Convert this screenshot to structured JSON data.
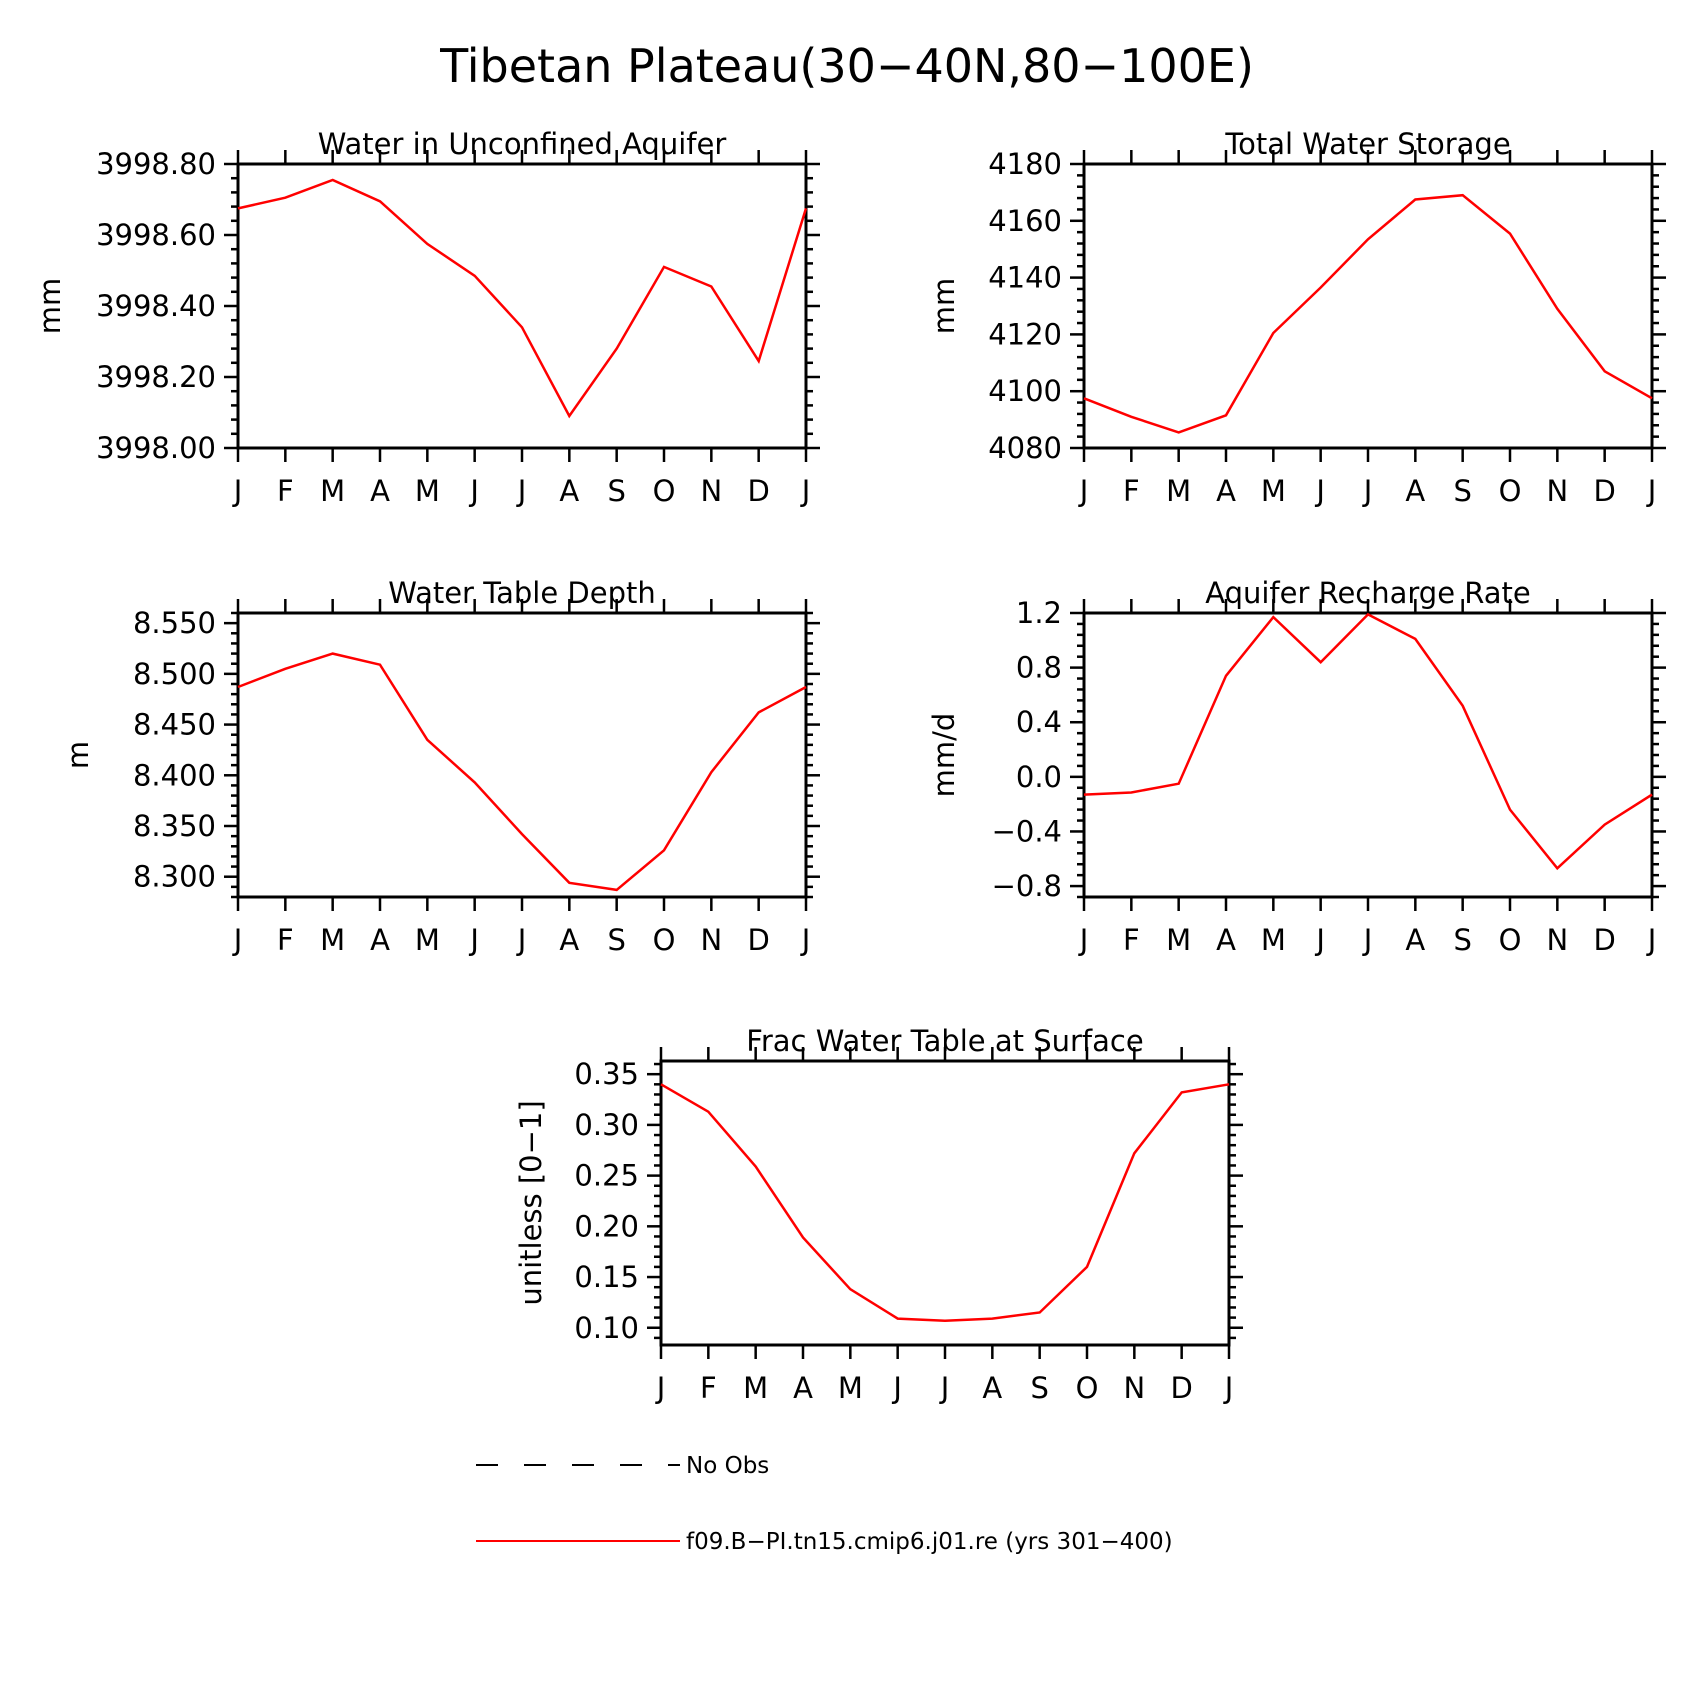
{
  "title": "Tibetan Plateau(30-40N,80-100E)",
  "colors": {
    "model": "#ff0000",
    "axis": "#000000",
    "obs": "#000000"
  },
  "legend": {
    "entries": [
      {
        "label": "No Obs",
        "style": "dashed",
        "color": "#000000"
      },
      {
        "label": "f09.B-PI.tn15.cmip6.j01.re (yrs 301-400)",
        "style": "solid",
        "color": "#ff0000"
      }
    ]
  },
  "chart_data": [
    {
      "type": "line",
      "title": "Water in Unconfined Aquifer",
      "xlabel": "",
      "ylabel": "mm",
      "categories": [
        "J",
        "F",
        "M",
        "A",
        "M",
        "J",
        "J",
        "A",
        "S",
        "O",
        "N",
        "D",
        "J"
      ],
      "ylim": [
        3998.0,
        3998.8
      ],
      "yticks": [
        3998.0,
        3998.2,
        3998.4,
        3998.6,
        3998.8
      ],
      "ytick_labels": [
        "3998.00",
        "3998.20",
        "3998.40",
        "3998.60",
        "3998.80"
      ],
      "yminor": 4,
      "series": [
        {
          "name": "f09.B-PI.tn15.cmip6.j01.re (yrs 301-400)",
          "color": "#ff0000",
          "values": [
            3998.675,
            3998.705,
            3998.755,
            3998.695,
            3998.575,
            3998.485,
            3998.34,
            3998.09,
            3998.28,
            3998.51,
            3998.455,
            3998.245,
            3998.675
          ]
        }
      ]
    },
    {
      "type": "line",
      "title": "Total Water Storage",
      "xlabel": "",
      "ylabel": "mm",
      "categories": [
        "J",
        "F",
        "M",
        "A",
        "M",
        "J",
        "J",
        "A",
        "S",
        "O",
        "N",
        "D",
        "J"
      ],
      "ylim": [
        4080,
        4180
      ],
      "yticks": [
        4080,
        4100,
        4120,
        4140,
        4160,
        4180
      ],
      "ytick_labels": [
        "4080",
        "4100",
        "4120",
        "4140",
        "4160",
        "4180"
      ],
      "yminor": 4,
      "series": [
        {
          "name": "f09.B-PI.tn15.cmip6.j01.re (yrs 301-400)",
          "color": "#ff0000",
          "values": [
            4097.5,
            4091,
            4085.5,
            4091.5,
            4120.5,
            4136.5,
            4153.5,
            4167.5,
            4169,
            4155.5,
            4129,
            4107,
            4097.5
          ]
        }
      ]
    },
    {
      "type": "line",
      "title": "Water Table Depth",
      "xlabel": "",
      "ylabel": "m",
      "categories": [
        "J",
        "F",
        "M",
        "A",
        "M",
        "J",
        "J",
        "A",
        "S",
        "O",
        "N",
        "D",
        "J"
      ],
      "ylim": [
        8.28,
        8.56
      ],
      "yticks": [
        8.3,
        8.35,
        8.4,
        8.45,
        8.5,
        8.55
      ],
      "ytick_labels": [
        "8.300",
        "8.350",
        "8.400",
        "8.450",
        "8.500",
        "8.550"
      ],
      "yminor": 4,
      "series": [
        {
          "name": "f09.B-PI.tn15.cmip6.j01.re (yrs 301-400)",
          "color": "#ff0000",
          "values": [
            8.487,
            8.505,
            8.52,
            8.509,
            8.435,
            8.393,
            8.342,
            8.294,
            8.287,
            8.326,
            8.403,
            8.462,
            8.487
          ]
        }
      ]
    },
    {
      "type": "line",
      "title": "Aquifer Recharge Rate",
      "xlabel": "",
      "ylabel": "mm/d",
      "categories": [
        "J",
        "F",
        "M",
        "A",
        "M",
        "J",
        "J",
        "A",
        "S",
        "O",
        "N",
        "D",
        "J"
      ],
      "ylim": [
        -0.88,
        1.2
      ],
      "yticks": [
        -0.8,
        -0.4,
        0.0,
        0.4,
        0.8,
        1.2
      ],
      "ytick_labels": [
        "-0.8",
        "-0.4",
        "0.0",
        "0.4",
        "0.8",
        "1.2"
      ],
      "yminor": 4,
      "series": [
        {
          "name": "f09.B-PI.tn15.cmip6.j01.re (yrs 301-400)",
          "color": "#ff0000",
          "values": [
            -0.13,
            -0.115,
            -0.05,
            0.74,
            1.17,
            0.84,
            1.19,
            1.01,
            0.52,
            -0.24,
            -0.67,
            -0.35,
            -0.13
          ]
        }
      ]
    },
    {
      "type": "line",
      "title": "Frac Water Table at Surface",
      "xlabel": "",
      "ylabel": "unitless [0-1]",
      "categories": [
        "J",
        "F",
        "M",
        "A",
        "M",
        "J",
        "J",
        "A",
        "S",
        "O",
        "N",
        "D",
        "J"
      ],
      "ylim": [
        0.083,
        0.363
      ],
      "yticks": [
        0.1,
        0.15,
        0.2,
        0.25,
        0.3,
        0.35
      ],
      "ytick_labels": [
        "0.10",
        "0.15",
        "0.20",
        "0.25",
        "0.30",
        "0.35"
      ],
      "yminor": 4,
      "series": [
        {
          "name": "f09.B-PI.tn15.cmip6.j01.re (yrs 301-400)",
          "color": "#ff0000",
          "values": [
            0.34,
            0.313,
            0.259,
            0.189,
            0.138,
            0.109,
            0.107,
            0.109,
            0.115,
            0.16,
            0.272,
            0.332,
            0.34
          ]
        }
      ]
    }
  ]
}
